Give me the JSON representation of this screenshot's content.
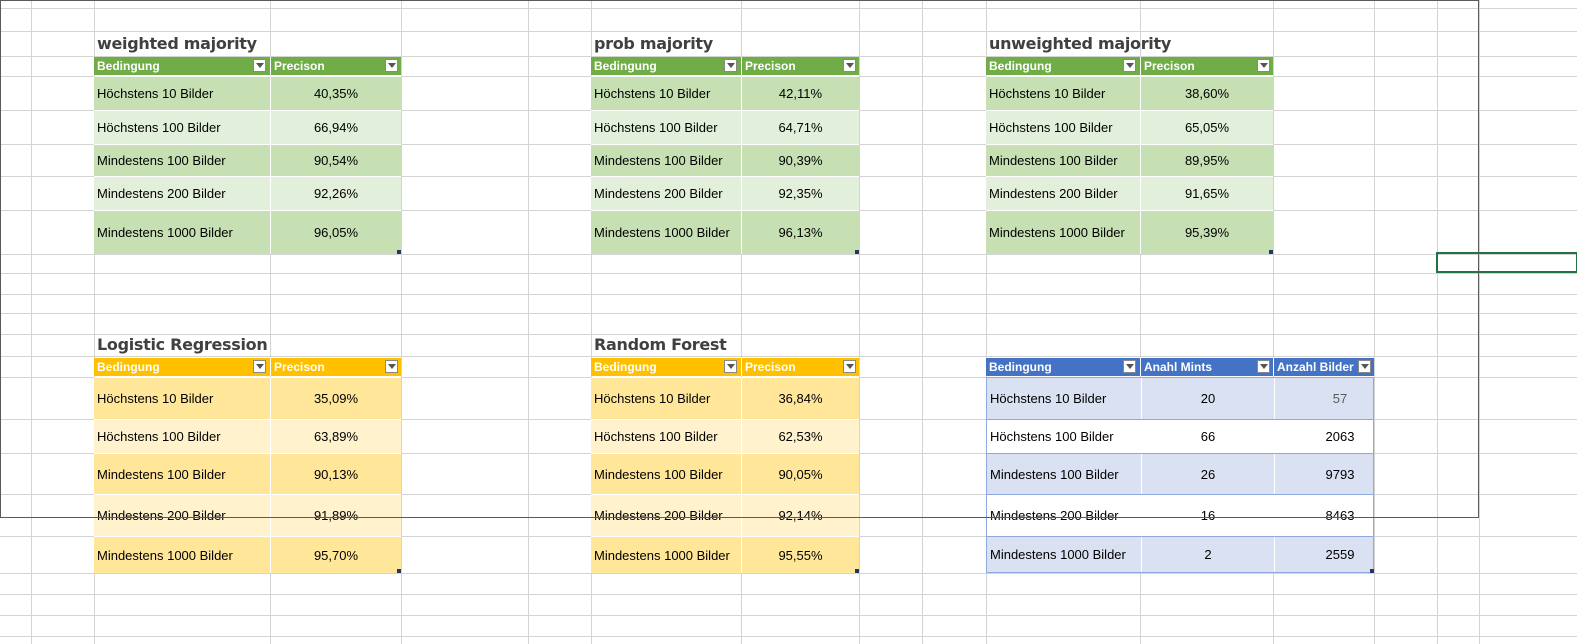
{
  "colors": {
    "green_header": "#70ad47",
    "green_dark": "#c6e0b4",
    "green_light": "#e2efda",
    "orange_header": "#ffc000",
    "orange_dark": "#ffe699",
    "orange_light": "#fff2cc",
    "blue_header": "#4472c4",
    "blue_dark": "#d9e1f2",
    "blue_light": "#ffffff"
  },
  "tables": {
    "weighted": {
      "title": "weighted majority",
      "headers": [
        "Bedingung",
        "Precison"
      ],
      "rows": [
        [
          "Höchstens 10 Bilder",
          "40,35%"
        ],
        [
          "Höchstens 100 Bilder",
          "66,94%"
        ],
        [
          "Mindestens 100 Bilder",
          "90,54%"
        ],
        [
          "Mindestens 200 Bilder",
          "92,26%"
        ],
        [
          "Mindestens 1000 Bilder",
          "96,05%"
        ]
      ]
    },
    "prob": {
      "title": "prob majority",
      "headers": [
        "Bedingung",
        "Precison"
      ],
      "rows": [
        [
          "Höchstens 10 Bilder",
          "42,11%"
        ],
        [
          "Höchstens 100 Bilder",
          "64,71%"
        ],
        [
          "Mindestens 100 Bilder",
          "90,39%"
        ],
        [
          "Mindestens 200 Bilder",
          "92,35%"
        ],
        [
          "Mindestens 1000 Bilder",
          "96,13%"
        ]
      ]
    },
    "unweighted": {
      "title": "unweighted majority",
      "headers": [
        "Bedingung",
        "Precison"
      ],
      "rows": [
        [
          "Höchstens 10 Bilder",
          "38,60%"
        ],
        [
          "Höchstens 100 Bilder",
          "65,05%"
        ],
        [
          "Mindestens 100 Bilder",
          "89,95%"
        ],
        [
          "Mindestens 200 Bilder",
          "91,65%"
        ],
        [
          "Mindestens 1000 Bilder",
          "95,39%"
        ]
      ]
    },
    "logistic": {
      "title": "Logistic Regression",
      "headers": [
        "Bedingung",
        "Precison"
      ],
      "rows": [
        [
          "Höchstens 10 Bilder",
          "35,09%"
        ],
        [
          "Höchstens 100 Bilder",
          "63,89%"
        ],
        [
          "Mindestens 100 Bilder",
          "90,13%"
        ],
        [
          "Mindestens 200 Bilder",
          "91,89%"
        ],
        [
          "Mindestens 1000 Bilder",
          "95,70%"
        ]
      ]
    },
    "forest": {
      "title": "Random Forest",
      "headers": [
        "Bedingung",
        "Precison"
      ],
      "rows": [
        [
          "Höchstens 10 Bilder",
          "36,84%"
        ],
        [
          "Höchstens 100 Bilder",
          "62,53%"
        ],
        [
          "Mindestens 100 Bilder",
          "90,05%"
        ],
        [
          "Mindestens 200 Bilder",
          "92,14%"
        ],
        [
          "Mindestens 1000 Bilder",
          "95,55%"
        ]
      ]
    },
    "counts": {
      "title": "",
      "headers": [
        "Bedingung",
        "Anahl Mints",
        "Anzahl Bilder"
      ],
      "rows": [
        [
          "Höchstens 10 Bilder",
          "20",
          "57"
        ],
        [
          "Höchstens 100 Bilder",
          "66",
          "2063"
        ],
        [
          "Mindestens 100 Bilder",
          "26",
          "9793"
        ],
        [
          "Mindestens 200 Bilder",
          "16",
          "8463"
        ],
        [
          "Mindestens 1000 Bilder",
          "2",
          "2559"
        ]
      ]
    }
  }
}
